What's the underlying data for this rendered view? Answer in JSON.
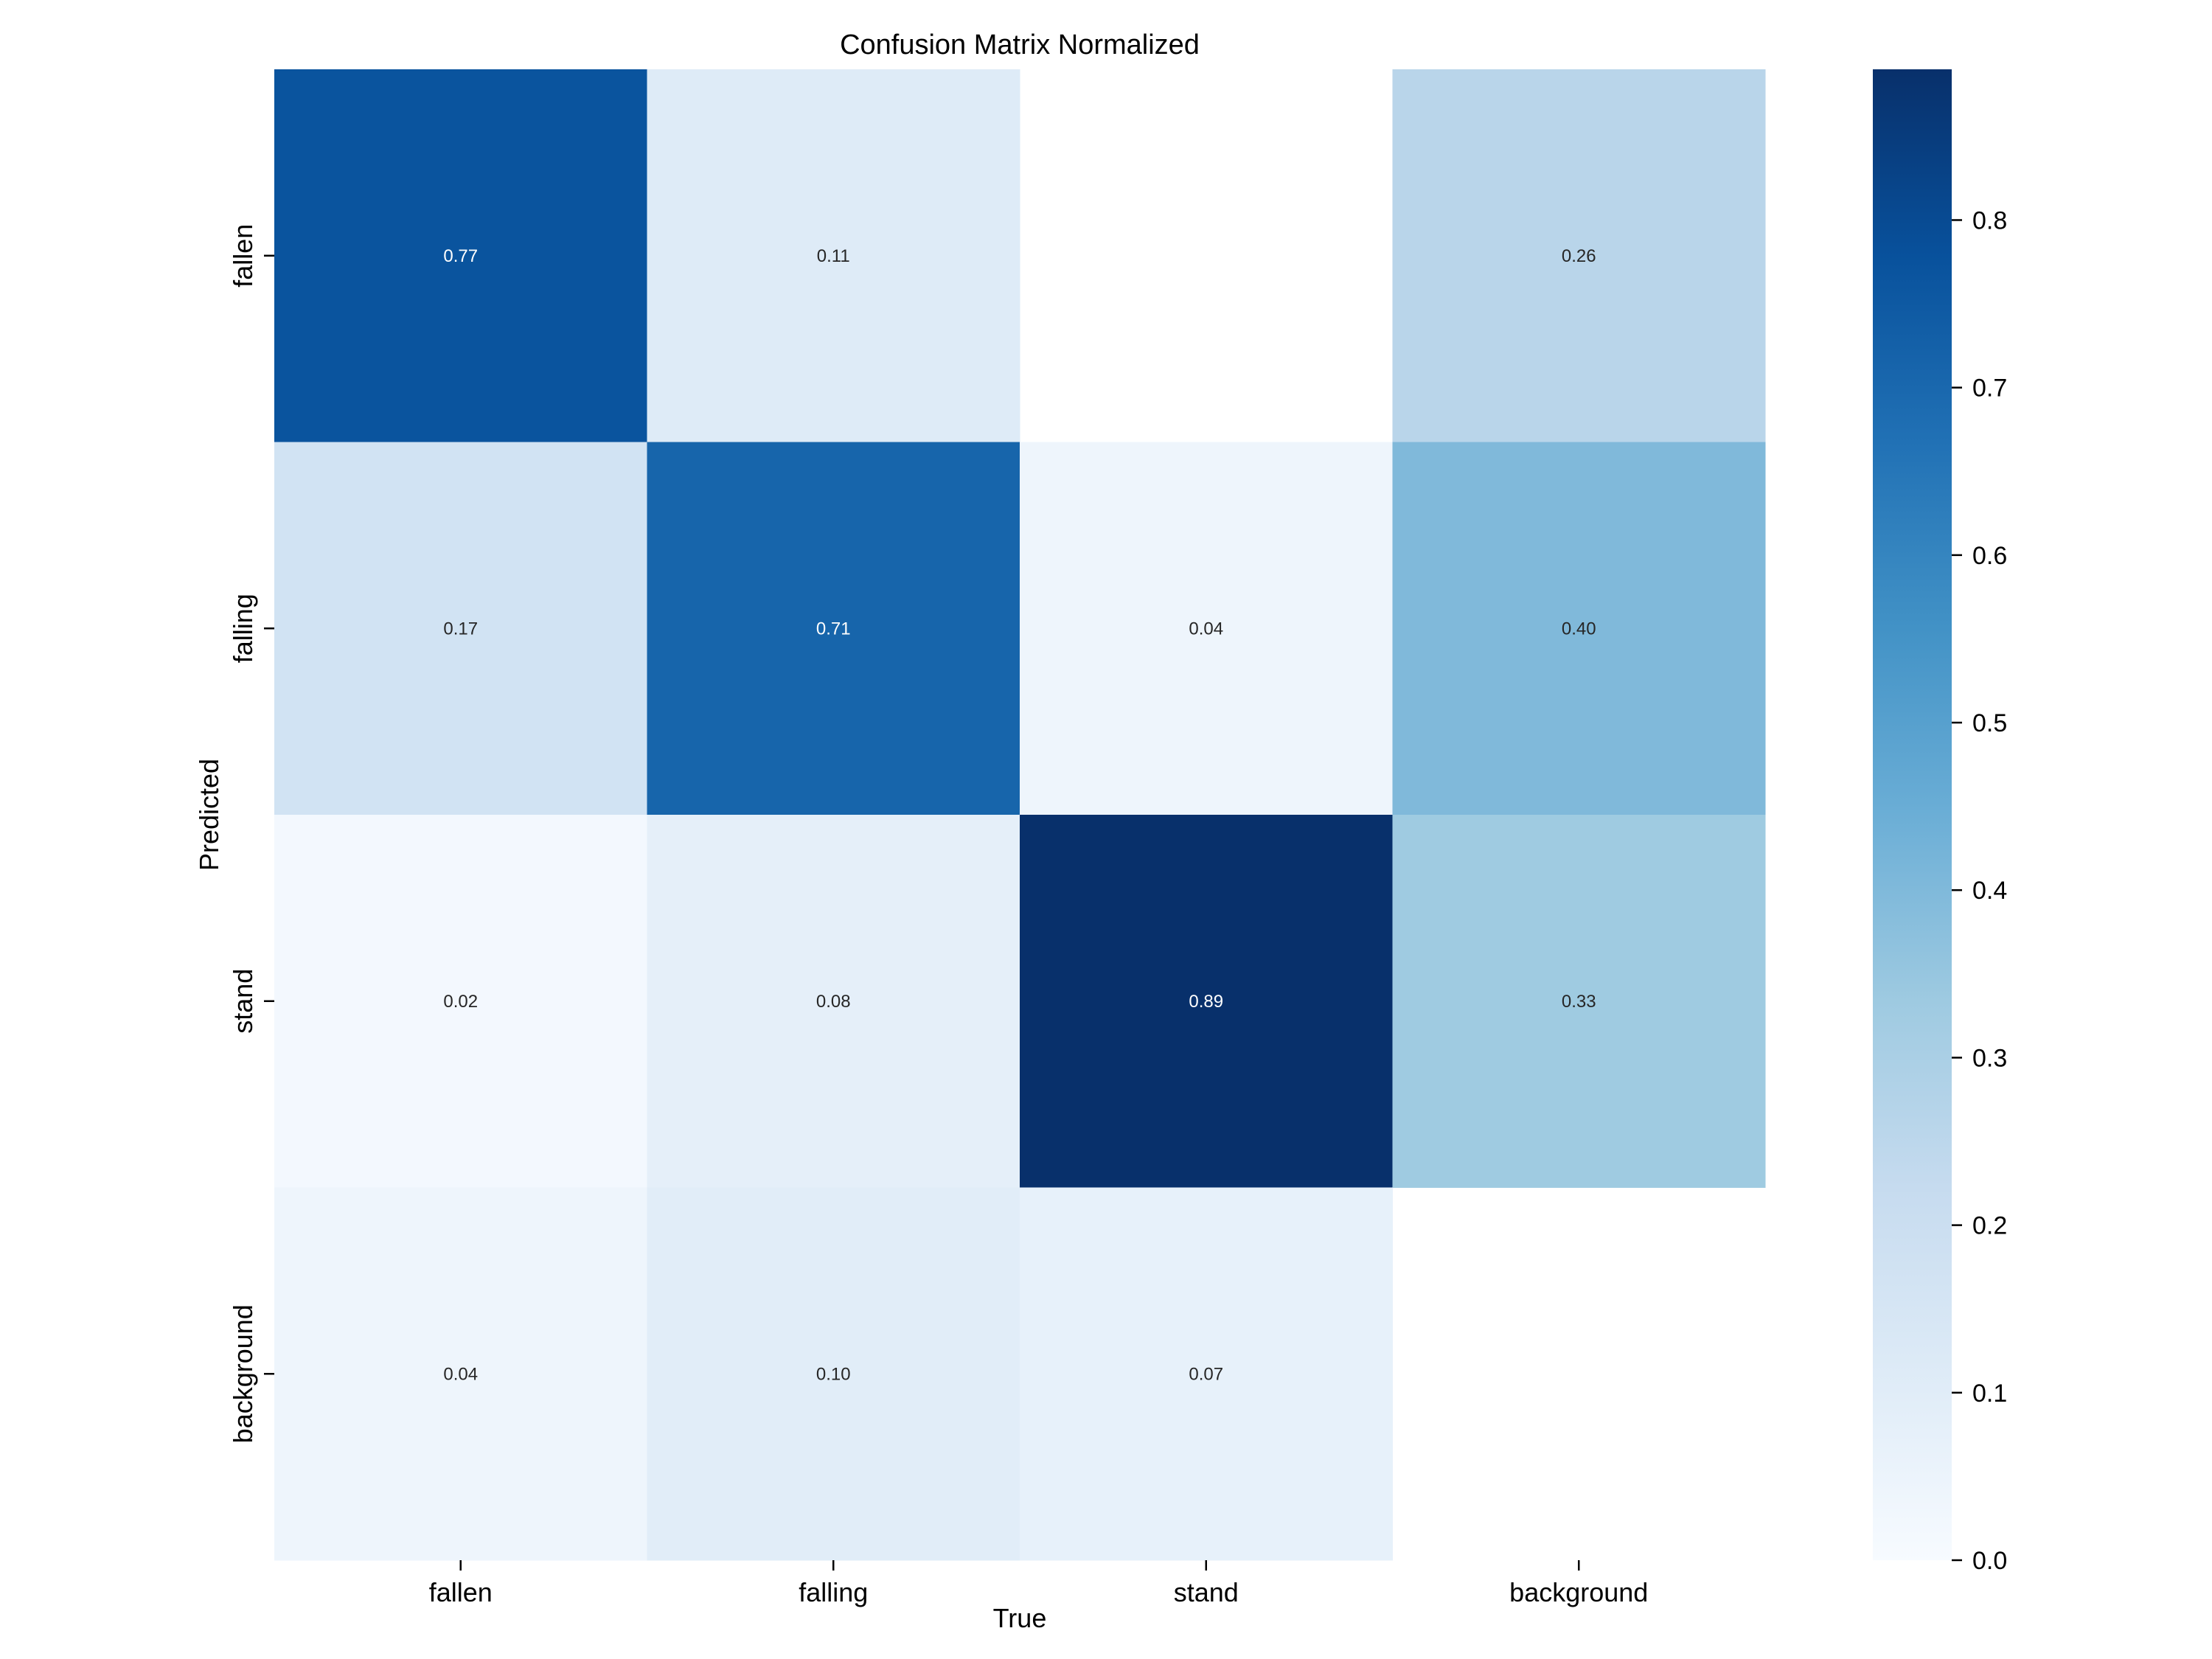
{
  "chart_data": {
    "type": "heatmap",
    "title": "Confusion Matrix Normalized",
    "xlabel": "True",
    "ylabel": "Predicted",
    "x_categories": [
      "fallen",
      "falling",
      "stand",
      "background"
    ],
    "y_categories": [
      "fallen",
      "falling",
      "stand",
      "background"
    ],
    "values": [
      [
        0.77,
        0.11,
        null,
        0.26
      ],
      [
        0.17,
        0.71,
        0.04,
        0.4
      ],
      [
        0.02,
        0.08,
        0.89,
        0.33
      ],
      [
        0.04,
        0.1,
        0.07,
        null
      ]
    ],
    "cell_labels": [
      [
        "0.77",
        "0.11",
        "",
        "0.26"
      ],
      [
        "0.17",
        "0.71",
        "0.04",
        "0.40"
      ],
      [
        "0.02",
        "0.08",
        "0.89",
        "0.33"
      ],
      [
        "0.04",
        "0.10",
        "0.07",
        ""
      ]
    ],
    "vmin": 0.0,
    "vmax": 0.89,
    "colormap": "Blues",
    "colorbar_ticks": [
      "0.0",
      "0.1",
      "0.2",
      "0.3",
      "0.4",
      "0.5",
      "0.6",
      "0.7",
      "0.8"
    ],
    "grid": false
  }
}
